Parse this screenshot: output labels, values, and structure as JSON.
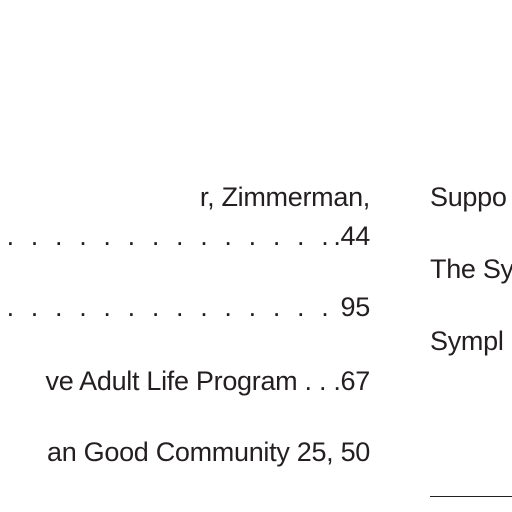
{
  "index": {
    "left_column": [
      {
        "text": "r, Zimmerman,"
      },
      {
        "dots": ". . . . . . . . . . . . . . . . . . . . .",
        "page": ".44"
      },
      {
        "dots": ". . . . . . . . . . . . . . . . . . . .",
        "page": " 95"
      },
      {
        "text": "ve Adult Life Program . . .67"
      },
      {
        "text": "an Good Community 25, 50"
      }
    ],
    "right_column": [
      {
        "text": "Suppo"
      },
      {
        "text": "The Sy"
      },
      {
        "text": "Sympl"
      }
    ]
  }
}
